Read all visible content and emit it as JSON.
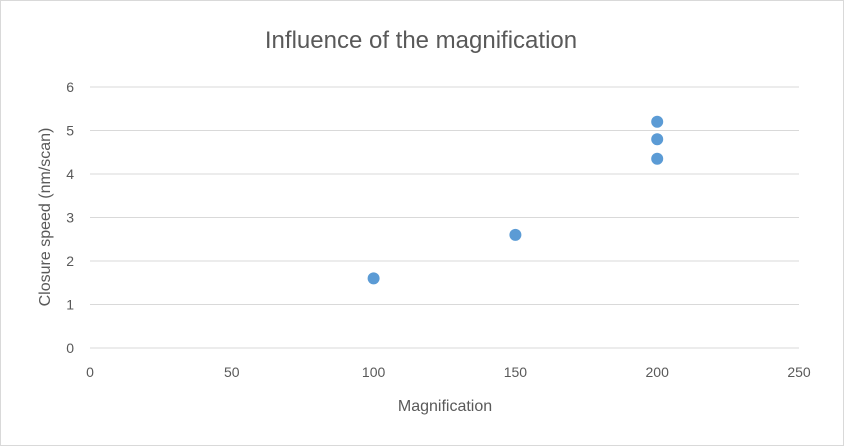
{
  "chart_data": {
    "type": "scatter",
    "title": "Influence of the magnification",
    "xlabel": "Magnification",
    "ylabel": "Closure speed (nm/scan)",
    "xlim": [
      0,
      250
    ],
    "ylim": [
      0,
      6
    ],
    "xticks": [
      "0",
      "50",
      "100",
      "150",
      "200",
      "250"
    ],
    "yticks": [
      "0",
      "1",
      "2",
      "3",
      "4",
      "5",
      "6"
    ],
    "grid": "horizontal",
    "legend": "none",
    "series": [
      {
        "color": "#5b9bd5",
        "points": [
          {
            "x": 100,
            "y": 1.6
          },
          {
            "x": 150,
            "y": 2.6
          },
          {
            "x": 200,
            "y": 4.35
          },
          {
            "x": 200,
            "y": 4.8
          },
          {
            "x": 200,
            "y": 5.2
          }
        ]
      }
    ]
  }
}
